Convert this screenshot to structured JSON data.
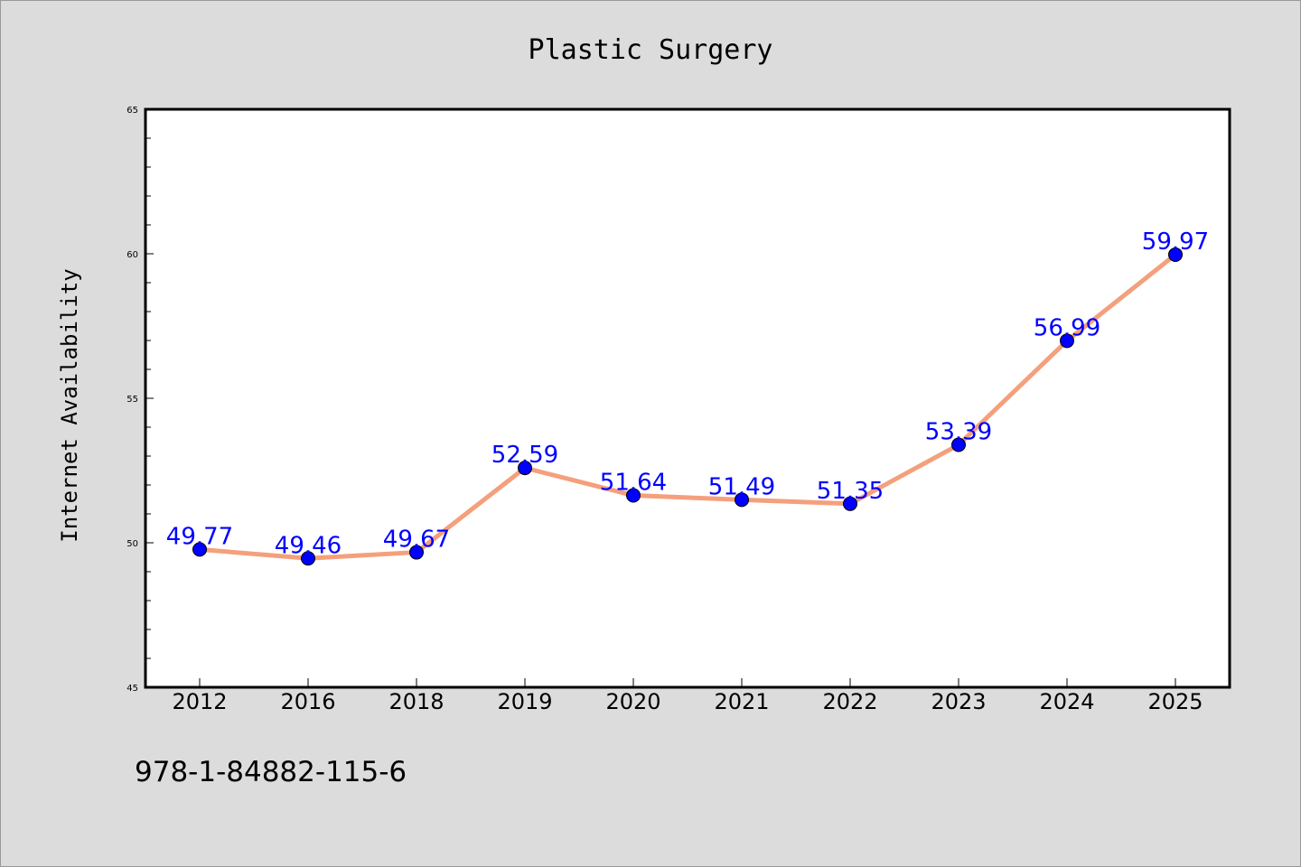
{
  "colors": {
    "background": "#dcdcdc",
    "plot_background": "#ffffff",
    "line": "#f4a07c",
    "marker": "#0000ff",
    "label": "#0000ff"
  },
  "footer": {
    "isbn": "978-1-84882-115-6"
  },
  "chart_data": {
    "type": "line",
    "title": "Plastic Surgery",
    "xlabel": "",
    "ylabel": "Internet Availability",
    "categories": [
      "2012",
      "2016",
      "2018",
      "2019",
      "2020",
      "2021",
      "2022",
      "2023",
      "2024",
      "2025"
    ],
    "series": [
      {
        "values": [
          49.77,
          49.46,
          49.67,
          52.59,
          51.64,
          51.49,
          51.35,
          53.39,
          56.99,
          59.97
        ],
        "labels": [
          "49.77",
          "49.46",
          "49.67",
          "52.59",
          "51.64",
          "51.49",
          "51.35",
          "53.39",
          "56.99",
          "59.97"
        ]
      }
    ],
    "ylim": [
      45,
      65
    ],
    "yticks": [
      "45",
      "50",
      "55",
      "60",
      "65"
    ],
    "grid": false,
    "legend": "none"
  }
}
